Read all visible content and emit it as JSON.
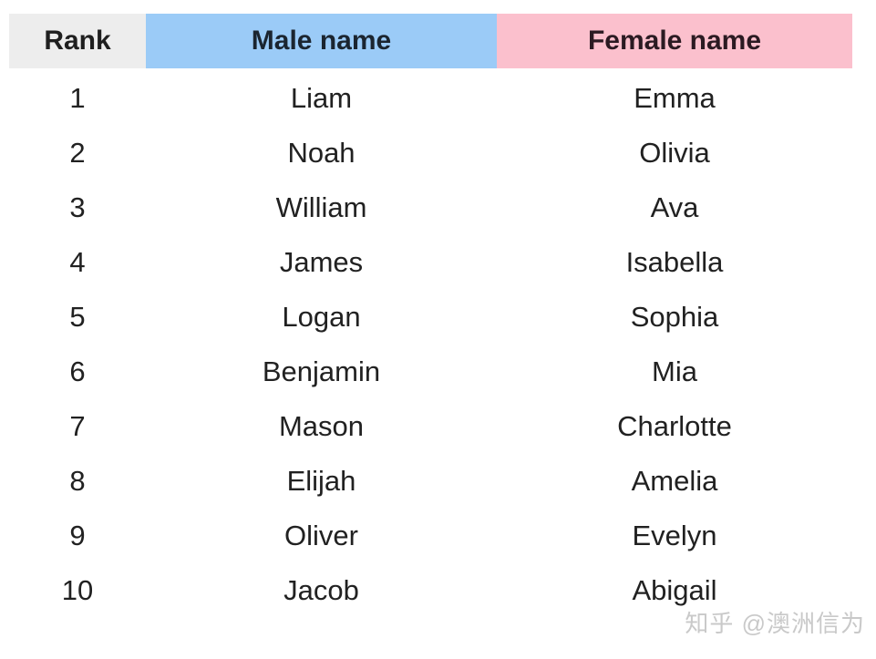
{
  "table": {
    "headers": {
      "rank": "Rank",
      "male": "Male name",
      "female": "Female name"
    },
    "rows": [
      {
        "rank": "1",
        "male": "Liam",
        "female": "Emma"
      },
      {
        "rank": "2",
        "male": "Noah",
        "female": "Olivia"
      },
      {
        "rank": "3",
        "male": "William",
        "female": "Ava"
      },
      {
        "rank": "4",
        "male": "James",
        "female": "Isabella"
      },
      {
        "rank": "5",
        "male": "Logan",
        "female": "Sophia"
      },
      {
        "rank": "6",
        "male": "Benjamin",
        "female": "Mia"
      },
      {
        "rank": "7",
        "male": "Mason",
        "female": "Charlotte"
      },
      {
        "rank": "8",
        "male": "Elijah",
        "female": "Amelia"
      },
      {
        "rank": "9",
        "male": "Oliver",
        "female": "Evelyn"
      },
      {
        "rank": "10",
        "male": "Jacob",
        "female": "Abigail"
      }
    ]
  },
  "watermark": {
    "text": "知乎 @澳洲信为"
  },
  "colors": {
    "rank_header_bg": "#ededed",
    "male_header_bg": "#9bcbf7",
    "female_header_bg": "#fbc0cd",
    "body_text": "#212121",
    "watermark_text": "#c9c9c9"
  },
  "chart_data": {
    "type": "table",
    "title": "",
    "columns": [
      "Rank",
      "Male name",
      "Female name"
    ],
    "rows": [
      [
        "1",
        "Liam",
        "Emma"
      ],
      [
        "2",
        "Noah",
        "Olivia"
      ],
      [
        "3",
        "William",
        "Ava"
      ],
      [
        "4",
        "James",
        "Isabella"
      ],
      [
        "5",
        "Logan",
        "Sophia"
      ],
      [
        "6",
        "Benjamin",
        "Mia"
      ],
      [
        "7",
        "Mason",
        "Charlotte"
      ],
      [
        "8",
        "Elijah",
        "Amelia"
      ],
      [
        "9",
        "Oliver",
        "Evelyn"
      ],
      [
        "10",
        "Jacob",
        "Abigail"
      ]
    ]
  }
}
